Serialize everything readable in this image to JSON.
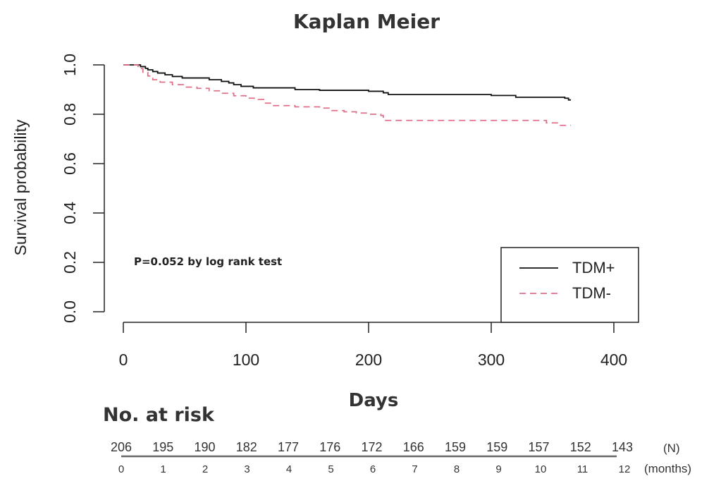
{
  "chart_data": {
    "type": "line",
    "title": "Kaplan Meier",
    "xlabel": "Days",
    "ylabel": "Survival probability",
    "xlim": [
      0,
      400
    ],
    "ylim": [
      0,
      1
    ],
    "xticks": [
      "0",
      "100",
      "200",
      "300",
      "400"
    ],
    "yticks": [
      "0.0",
      "0.2",
      "0.4",
      "0.6",
      "0.8",
      "1.0"
    ],
    "grid": false,
    "legend_position": "bottom-right",
    "annotation": "P=0.052 by log rank test",
    "series": [
      {
        "name": "TDM+",
        "color": "#111111",
        "line_style": "solid",
        "x": [
          0,
          14,
          18,
          20,
          24,
          28,
          34,
          40,
          48,
          60,
          70,
          80,
          86,
          90,
          96,
          106,
          120,
          140,
          150,
          160,
          180,
          200,
          210,
          212,
          216,
          230,
          260,
          280,
          300,
          315,
          320,
          340,
          360,
          363,
          365
        ],
        "y": [
          1.0,
          0.993,
          0.986,
          0.98,
          0.973,
          0.967,
          0.96,
          0.953,
          0.947,
          0.947,
          0.94,
          0.933,
          0.927,
          0.92,
          0.913,
          0.907,
          0.907,
          0.9,
          0.9,
          0.897,
          0.897,
          0.893,
          0.893,
          0.887,
          0.88,
          0.88,
          0.88,
          0.88,
          0.876,
          0.876,
          0.869,
          0.869,
          0.865,
          0.858,
          0.858
        ]
      },
      {
        "name": "TDM-",
        "color": "#e0708a",
        "line_style": "dashed",
        "x": [
          0,
          12,
          16,
          20,
          24,
          30,
          40,
          50,
          60,
          70,
          80,
          90,
          100,
          110,
          115,
          120,
          140,
          160,
          170,
          180,
          190,
          200,
          210,
          212,
          230,
          260,
          300,
          340,
          345,
          355,
          365
        ],
        "y": [
          1.0,
          0.985,
          0.97,
          0.955,
          0.94,
          0.93,
          0.92,
          0.91,
          0.905,
          0.895,
          0.885,
          0.875,
          0.865,
          0.86,
          0.845,
          0.835,
          0.83,
          0.825,
          0.815,
          0.81,
          0.805,
          0.8,
          0.795,
          0.775,
          0.775,
          0.775,
          0.775,
          0.775,
          0.765,
          0.755,
          0.755
        ]
      }
    ]
  },
  "risk_table": {
    "title": "No. at risk",
    "counts": [
      "206",
      "195",
      "190",
      "182",
      "177",
      "176",
      "172",
      "166",
      "159",
      "159",
      "157",
      "152",
      "143"
    ],
    "months": [
      "0",
      "1",
      "2",
      "3",
      "4",
      "5",
      "6",
      "7",
      "8",
      "9",
      "10",
      "11",
      "12"
    ],
    "counts_unit": "(N)",
    "months_unit": "(months)"
  }
}
